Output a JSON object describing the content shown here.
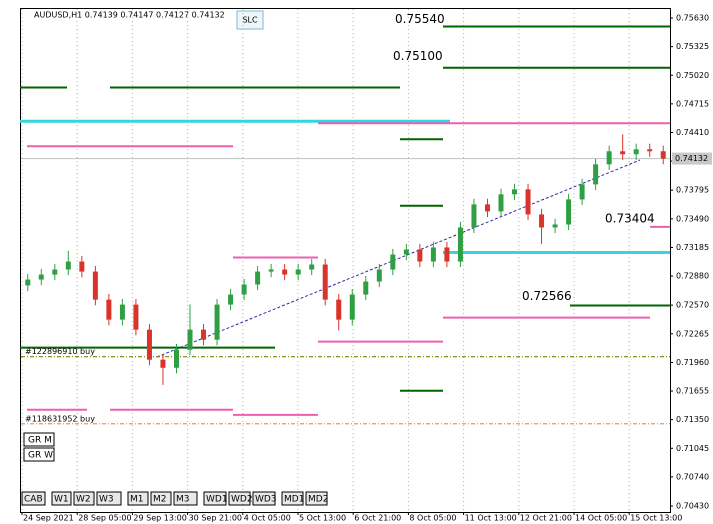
{
  "chart_data": {
    "type": "candlestick",
    "header": "AUDUSD,H1  0.74139 0.74147 0.74127 0.74132",
    "top_button": "SLC",
    "categories": [
      "24 Sep 2021",
      "28 Sep 05:00",
      "29 Sep 13:00",
      "30 Sep 21:00",
      "4 Oct 05:00",
      "5 Oct 13:00",
      "6 Oct 21:00",
      "8 Oct 05:00",
      "11 Oct 13:00",
      "12 Oct 21:00",
      "14 Oct 05:00",
      "15 Oct 13:00"
    ],
    "open": [
      0.7278,
      0.72843,
      0.72896,
      0.7295,
      0.73035,
      0.72928,
      0.72629,
      0.72416,
      0.72576,
      0.72309,
      0.71989,
      0.71903,
      0.72096,
      0.72309,
      0.72202,
      0.72576,
      0.72683,
      0.7279,
      0.72928,
      0.7295,
      0.72896,
      0.7295,
      0.73003,
      0.72629,
      0.72416,
      0.72683,
      0.72822,
      0.7295,
      0.7311,
      0.73163,
      0.73035,
      0.73185,
      0.73035,
      0.73398,
      0.73644,
      0.73569,
      0.73751,
      0.73804,
      0.73537,
      0.73398,
      0.7343,
      0.73697,
      0.73857,
      0.74071,
      0.7421,
      0.74178,
      0.74231,
      0.7421
    ],
    "high": [
      0.72903,
      0.72956,
      0.7301,
      0.7315,
      0.73095,
      0.72988,
      0.72689,
      0.72636,
      0.72636,
      0.72369,
      0.72049,
      0.72156,
      0.7258,
      0.72369,
      0.72636,
      0.72743,
      0.7285,
      0.72988,
      0.7301,
      0.7301,
      0.7301,
      0.73063,
      0.73063,
      0.72689,
      0.72743,
      0.72882,
      0.7301,
      0.7317,
      0.73223,
      0.73223,
      0.73245,
      0.73245,
      0.73458,
      0.73704,
      0.73704,
      0.73811,
      0.73864,
      0.73864,
      0.73597,
      0.7349,
      0.73757,
      0.73917,
      0.74131,
      0.7427,
      0.7439,
      0.74291,
      0.74291,
      0.7427
    ],
    "low": [
      0.7272,
      0.72783,
      0.72836,
      0.7289,
      0.72868,
      0.72569,
      0.72356,
      0.72356,
      0.72249,
      0.71929,
      0.7172,
      0.71843,
      0.72036,
      0.72142,
      0.72142,
      0.72516,
      0.72623,
      0.7273,
      0.72868,
      0.72836,
      0.72836,
      0.7289,
      0.72569,
      0.723,
      0.72356,
      0.72623,
      0.72762,
      0.7289,
      0.7305,
      0.72975,
      0.72975,
      0.72975,
      0.72975,
      0.73338,
      0.73509,
      0.73509,
      0.73691,
      0.73477,
      0.7322,
      0.73338,
      0.7337,
      0.73637,
      0.73797,
      0.74011,
      0.74118,
      0.74118,
      0.7415,
      0.74072
    ],
    "close": [
      0.72843,
      0.72896,
      0.7295,
      0.73035,
      0.72928,
      0.72629,
      0.72416,
      0.72576,
      0.72309,
      0.71989,
      0.71903,
      0.72096,
      0.72309,
      0.72202,
      0.72576,
      0.72683,
      0.7279,
      0.72928,
      0.7295,
      0.72896,
      0.7295,
      0.73003,
      0.72629,
      0.72416,
      0.72683,
      0.72822,
      0.7295,
      0.7311,
      0.73163,
      0.73035,
      0.73185,
      0.73035,
      0.73398,
      0.73644,
      0.73569,
      0.73751,
      0.73804,
      0.73537,
      0.73398,
      0.7343,
      0.73697,
      0.73857,
      0.74071,
      0.7421,
      0.74178,
      0.74231,
      0.7421,
      0.74132
    ],
    "colors": {
      "up": "#2ea043",
      "down": "#d9332b"
    },
    "ylim": [
      0.70366,
      0.75726
    ],
    "yticks": [
      {
        "value": 0.7563,
        "label": "0.75630"
      },
      {
        "value": 0.75325,
        "label": "0.75325"
      },
      {
        "value": 0.7502,
        "label": "0.75020"
      },
      {
        "value": 0.74715,
        "label": "0.74715"
      },
      {
        "value": 0.7441,
        "label": "0.74410"
      },
      {
        "value": 0.74105,
        "label": "0.74105"
      },
      {
        "value": 0.73795,
        "label": "0.73795"
      },
      {
        "value": 0.7349,
        "label": "0.73490"
      },
      {
        "value": 0.73185,
        "label": "0.73185"
      },
      {
        "value": 0.7288,
        "label": "0.72880"
      },
      {
        "value": 0.7257,
        "label": "0.72570"
      },
      {
        "value": 0.72265,
        "label": "0.72265"
      },
      {
        "value": 0.7196,
        "label": "0.71960"
      },
      {
        "value": 0.71655,
        "label": "0.71655"
      },
      {
        "value": 0.7135,
        "label": "0.71350"
      },
      {
        "value": 0.71045,
        "label": "0.71045"
      },
      {
        "value": 0.7074,
        "label": "0.70740"
      },
      {
        "value": 0.7043,
        "label": "0.70430"
      }
    ],
    "grid": true,
    "current_price": {
      "value": 0.74132,
      "label": "0.74132"
    },
    "levels": [
      {
        "price": 0.7554,
        "color": "#006400",
        "label": "0.75540"
      },
      {
        "price": 0.751,
        "color": "#006400",
        "label": "0.75100"
      },
      {
        "price": 0.7489,
        "color": "#006400"
      },
      {
        "price": 0.7489,
        "color": "#006400"
      },
      {
        "price": 0.7453,
        "color": "#33d6e0"
      },
      {
        "price": 0.74509,
        "color": "#ee5fb0"
      },
      {
        "price": 0.74263,
        "color": "#ee5fb0"
      },
      {
        "price": 0.74338,
        "color": "#006400"
      },
      {
        "price": 0.7363,
        "color": "#006400"
      },
      {
        "price": 0.73078,
        "color": "#ee5fb0"
      },
      {
        "price": 0.73131,
        "color": "#33d6e0"
      },
      {
        "price": 0.73404,
        "color": "#ee5fb0",
        "label": "0.73404"
      },
      {
        "price": 0.72566,
        "color": "#006400",
        "label": "0.72566"
      },
      {
        "price": 0.72437,
        "color": "#ee5fb0"
      },
      {
        "price": 0.72181,
        "color": "#ee5fb0"
      },
      {
        "price": 0.72117,
        "color": "#006400"
      },
      {
        "price": 0.71658,
        "color": "#006400"
      },
      {
        "price": 0.71455,
        "color": "#ee5fb0"
      },
      {
        "price": 0.71455,
        "color": "#ee5fb0"
      },
      {
        "price": 0.71401,
        "color": "#ee5fb0"
      }
    ],
    "orders": [
      {
        "price": 0.72021,
        "color": "#808000",
        "label": "#122896910 buy"
      },
      {
        "price": 0.71306,
        "color": "#e8956a",
        "label": "#118631952 buy"
      }
    ],
    "side_buttons": [
      "GR M",
      "GR W"
    ],
    "buttons": [
      "CAB",
      "W1",
      "W2",
      "W3",
      "M1",
      "M2",
      "M3",
      "WD1",
      "WD2",
      "WD3",
      "MD1",
      "MD2"
    ]
  }
}
